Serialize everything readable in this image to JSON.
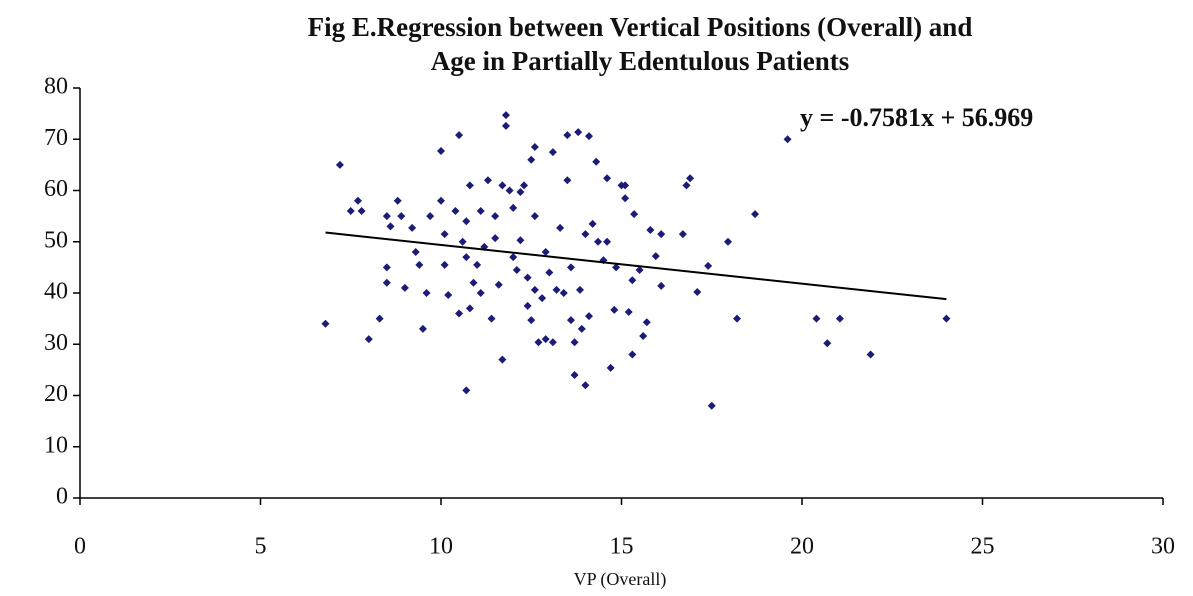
{
  "chart_data": {
    "type": "scatter",
    "title": [
      "Fig E.Regression between Vertical Positions (Overall) and",
      "Age in Partially Edentulous Patients"
    ],
    "x_label": "VP (Overall)",
    "annotation": "y = -0.7581x + 56.969",
    "xlim": [
      0,
      30
    ],
    "xticks": [
      0,
      5,
      10,
      15,
      20,
      25,
      30
    ],
    "ylim": [
      0,
      80
    ],
    "yticks": [
      0,
      10,
      20,
      30,
      40,
      50,
      60,
      70,
      80
    ],
    "grid": false,
    "series": [
      {
        "color": "#1c1c78",
        "x": [
          7.2,
          6.8,
          7.5,
          7.7,
          7.8,
          8.0,
          8.3,
          8.5,
          8.5,
          8.5,
          8.6,
          8.8,
          8.9,
          9.0,
          9.2,
          9.3,
          9.4,
          9.5,
          9.6,
          9.7,
          10.0,
          10.0,
          10.1,
          10.1,
          10.2,
          10.4,
          10.5,
          10.5,
          10.6,
          10.7,
          10.7,
          10.8,
          10.7,
          10.8,
          10.9,
          11.0,
          11.1,
          11.1,
          11.2,
          11.3,
          11.4,
          11.5,
          11.5,
          11.6,
          11.7,
          11.7,
          11.8,
          11.8,
          11.9,
          12.0,
          12.0,
          12.1,
          12.2,
          12.2,
          12.3,
          12.4,
          12.4,
          12.5,
          12.5,
          12.6,
          12.6,
          12.6,
          12.7,
          12.8,
          12.9,
          12.9,
          13.0,
          13.1,
          13.1,
          13.2,
          13.3,
          13.4,
          13.5,
          13.5,
          13.6,
          13.6,
          13.7,
          13.7,
          13.8,
          13.85,
          13.9,
          14.0,
          14.0,
          14.1,
          14.1,
          14.2,
          14.3,
          14.35,
          14.5,
          14.6,
          14.6,
          14.7,
          14.8,
          14.85,
          15.0,
          15.1,
          15.1,
          15.2,
          15.3,
          15.3,
          15.35,
          15.5,
          15.6,
          15.7,
          15.8,
          15.95,
          16.1,
          16.1,
          16.8,
          16.7,
          16.9,
          17.1,
          17.5,
          17.4,
          17.95,
          18.2,
          18.7,
          19.6,
          20.4,
          20.7,
          21.05,
          21.9,
          24.0
        ],
        "values": [
          65,
          34,
          56,
          58,
          56,
          31,
          35,
          55,
          45,
          42,
          53,
          58,
          55,
          41,
          52.7,
          48,
          45.5,
          33,
          40,
          55,
          58,
          67.7,
          51.5,
          45.5,
          39.6,
          56,
          36,
          70.8,
          50,
          54,
          21,
          61,
          47,
          37,
          42,
          45.5,
          40,
          56,
          49,
          62,
          35,
          55,
          50.7,
          41.6,
          61,
          27,
          74.7,
          72.6,
          60,
          47,
          56.6,
          44.5,
          59.7,
          50.3,
          61,
          43,
          37.5,
          34.7,
          66,
          55,
          68.5,
          40.6,
          30.4,
          39,
          31,
          48,
          44,
          67.5,
          30.4,
          40.6,
          52.7,
          40,
          70.8,
          62,
          45,
          34.7,
          30.4,
          24,
          71.4,
          40.6,
          33,
          51.5,
          22,
          35.5,
          70.6,
          53.5,
          65.6,
          50,
          46.4,
          62.4,
          50,
          25.4,
          36.7,
          45,
          61,
          58.5,
          61,
          36.3,
          42.5,
          28,
          55.4,
          44.5,
          31.6,
          34.3,
          52.3,
          47.2,
          41.4,
          51.5,
          61,
          51.5,
          62.4,
          40.2,
          18,
          45.3,
          50,
          35,
          55.4,
          70,
          35,
          30.2,
          35,
          28,
          35
        ]
      }
    ],
    "trendline": {
      "color": "#000000",
      "x": [
        6.8,
        24.0
      ],
      "values": [
        51.8,
        38.8
      ]
    }
  }
}
